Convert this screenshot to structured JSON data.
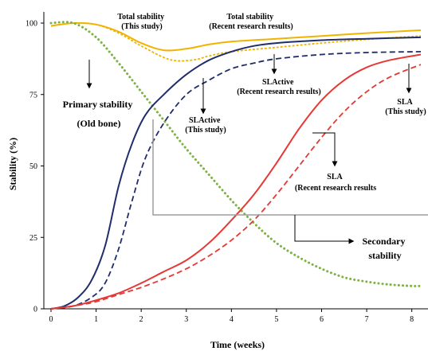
{
  "chart_data": {
    "type": "line",
    "xlabel": "Time (weeks)",
    "ylabel": "Stability (%)",
    "xlim": [
      0,
      8.2
    ],
    "ylim": [
      0,
      100
    ],
    "x_ticks": [
      0,
      1,
      2,
      3,
      4,
      5,
      6,
      7,
      8
    ],
    "y_ticks": [
      0,
      25,
      50,
      75,
      100
    ],
    "grid": false,
    "series": [
      {
        "color": "#f0b400",
        "style": "solid",
        "points": [
          [
            0,
            99
          ],
          [
            0.5,
            100
          ],
          [
            1,
            99.5
          ],
          [
            1.5,
            97
          ],
          [
            2,
            93
          ],
          [
            2.5,
            90.5
          ],
          [
            3,
            91
          ],
          [
            3.5,
            92.5
          ],
          [
            4,
            93.5
          ],
          [
            5,
            94.5
          ],
          [
            6,
            95.5
          ],
          [
            7,
            96.5
          ],
          [
            8.2,
            97.5
          ]
        ]
      },
      {
        "color": "#f0b400",
        "style": "dashed",
        "points": [
          [
            0,
            99
          ],
          [
            0.5,
            100
          ],
          [
            1,
            99.5
          ],
          [
            1.5,
            96.5
          ],
          [
            2,
            92
          ],
          [
            2.5,
            88
          ],
          [
            2.8,
            86.8
          ],
          [
            3.2,
            87.2
          ],
          [
            3.5,
            88.5
          ],
          [
            4,
            90
          ],
          [
            5,
            91.5
          ],
          [
            6,
            93
          ],
          [
            7,
            94.3
          ],
          [
            8.2,
            95.5
          ]
        ]
      },
      {
        "color": "#7cb342",
        "style": "dotted",
        "points": [
          [
            0,
            100
          ],
          [
            0.5,
            100
          ],
          [
            1,
            95
          ],
          [
            1.5,
            86
          ],
          [
            2,
            76
          ],
          [
            2.5,
            66
          ],
          [
            3,
            56
          ],
          [
            3.5,
            47
          ],
          [
            4,
            38
          ],
          [
            4.5,
            30
          ],
          [
            5,
            23
          ],
          [
            5.5,
            18
          ],
          [
            6,
            14
          ],
          [
            6.5,
            11
          ],
          [
            7,
            9.5
          ],
          [
            7.5,
            8.5
          ],
          [
            8,
            8
          ],
          [
            8.2,
            8
          ]
        ]
      },
      {
        "color": "#1f2d6b",
        "style": "solid",
        "points": [
          [
            0,
            0
          ],
          [
            0.3,
            1
          ],
          [
            0.6,
            4
          ],
          [
            0.9,
            10
          ],
          [
            1.2,
            22
          ],
          [
            1.5,
            43
          ],
          [
            1.8,
            58
          ],
          [
            2.1,
            68
          ],
          [
            2.5,
            75
          ],
          [
            3,
            82
          ],
          [
            3.5,
            87
          ],
          [
            4,
            90
          ],
          [
            4.5,
            92
          ],
          [
            5,
            93
          ],
          [
            6,
            94
          ],
          [
            7,
            94.5
          ],
          [
            8.2,
            95
          ]
        ]
      },
      {
        "color": "#1f2d6b",
        "style": "dashed",
        "points": [
          [
            0,
            0
          ],
          [
            0.5,
            1
          ],
          [
            0.9,
            4
          ],
          [
            1.2,
            9
          ],
          [
            1.5,
            21
          ],
          [
            1.8,
            38
          ],
          [
            2.1,
            53
          ],
          [
            2.5,
            65
          ],
          [
            3,
            75
          ],
          [
            3.5,
            80
          ],
          [
            4,
            84
          ],
          [
            4.5,
            86
          ],
          [
            5,
            87.5
          ],
          [
            6,
            89
          ],
          [
            7,
            89.7
          ],
          [
            8.2,
            90
          ]
        ]
      },
      {
        "color": "#e53935",
        "style": "solid",
        "points": [
          [
            0,
            0
          ],
          [
            0.5,
            1
          ],
          [
            1,
            3
          ],
          [
            1.5,
            5.5
          ],
          [
            2,
            9
          ],
          [
            2.5,
            13
          ],
          [
            3,
            17
          ],
          [
            3.5,
            23
          ],
          [
            4,
            31
          ],
          [
            4.5,
            40
          ],
          [
            5,
            51
          ],
          [
            5.5,
            63
          ],
          [
            6,
            73
          ],
          [
            6.5,
            80
          ],
          [
            7,
            84.5
          ],
          [
            7.5,
            87
          ],
          [
            8.2,
            89
          ]
        ]
      },
      {
        "color": "#e53935",
        "style": "dashed",
        "points": [
          [
            0,
            0
          ],
          [
            0.5,
            1
          ],
          [
            1,
            2.5
          ],
          [
            1.5,
            5
          ],
          [
            2,
            7.5
          ],
          [
            2.5,
            10.5
          ],
          [
            3,
            14
          ],
          [
            3.5,
            18.5
          ],
          [
            4,
            24
          ],
          [
            4.5,
            31
          ],
          [
            5,
            40
          ],
          [
            5.5,
            50
          ],
          [
            6,
            60
          ],
          [
            6.5,
            69
          ],
          [
            7,
            76
          ],
          [
            7.5,
            81
          ],
          [
            8.2,
            85.5
          ]
        ]
      }
    ],
    "annotations": [
      {
        "lines": [
          "Total stability",
          "(This study)"
        ],
        "color": "#e0a800"
      },
      {
        "lines": [
          "Total stability",
          "(Recent research results)"
        ],
        "color": "#e0a800"
      },
      {
        "lines": [
          "Primary stability",
          "(Old bone)"
        ],
        "color": "#5b8c2a"
      },
      {
        "lines": [
          "SLActive",
          "(Recent research results)"
        ],
        "color": "#000000"
      },
      {
        "lines": [
          "SLActive",
          "(This study)"
        ],
        "color": "#000000"
      },
      {
        "lines": [
          "SLA",
          "(This study)"
        ],
        "color": "#000000"
      },
      {
        "lines": [
          "SLA",
          "(Recent research results"
        ],
        "color": "#000000"
      },
      {
        "lines": [
          "Secondary",
          "stability"
        ],
        "color": "#000000"
      }
    ]
  }
}
